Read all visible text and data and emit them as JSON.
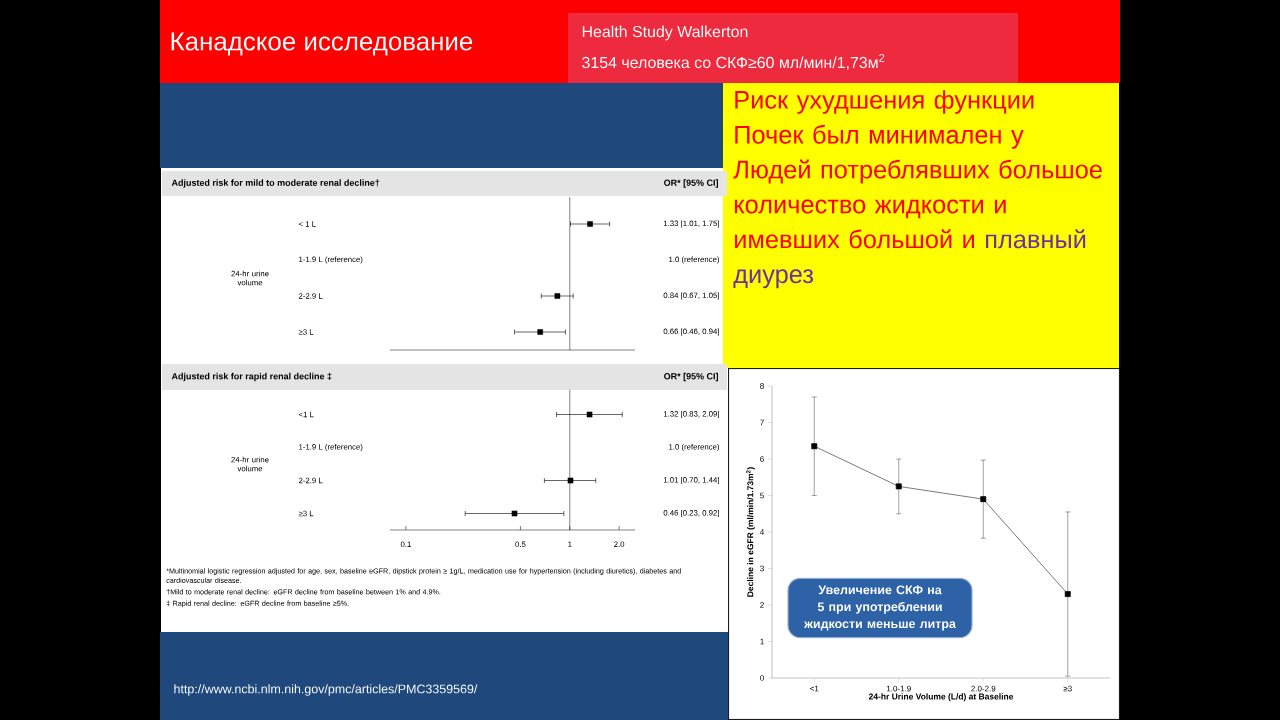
{
  "chart_data": [
    {
      "type": "other",
      "title": "Канадское исследование",
      "annotations": [
        "Health Study Walkerton",
        "3154 человека со СКФ≥60 мл/мин/1,73м$^{2}$",
        "http://www.ncbi.nlm.nih.gov/pmc/articles/PMC3359569/"
      ]
    },
    {
      "type": "scatter",
      "orientation": "horizontal",
      "title": "Adjusted risk for mild to moderate renal decline†",
      "ylabel": "24-hr urine volume",
      "categories": [
        "< 1 L",
        "1-1.9 L (reference)",
        "2-2.9 L",
        "≥3 L"
      ],
      "values": [
        1.33,
        null,
        0.84,
        0.66
      ],
      "errors": [
        [
          1.01,
          1.75
        ],
        null,
        [
          0.67,
          1.05
        ],
        [
          0.46,
          0.94
        ]
      ],
      "value_labels": [
        "1.33 [1.01, 1.75]",
        "1.0 (reference)",
        "0.84 [0.67, 1.05]",
        "0.66 [0.46, 0.94]"
      ],
      "color": "#000000",
      "marker": "square",
      "log": "x",
      "xlim": [
        0.08,
        2.5
      ],
      "tick_labels": "y",
      "ref_lines": [
        {
          "axis": "x",
          "value": 1
        }
      ],
      "annotations": [
        "OR* [95% CI]"
      ]
    },
    {
      "type": "scatter",
      "orientation": "horizontal",
      "title": "Adjusted risk for rapid renal decline ‡",
      "ylabel": "24-hr urine volume",
      "categories": [
        "<1 L",
        "1-1.9 L (reference)",
        "2-2.9 L",
        "≥3 L"
      ],
      "values": [
        1.32,
        null,
        1.01,
        0.46
      ],
      "errors": [
        [
          0.83,
          2.09
        ],
        null,
        [
          0.7,
          1.44
        ],
        [
          0.23,
          0.92
        ]
      ],
      "value_labels": [
        "1.32 [0.83, 2.09]",
        "1.0 (reference)",
        "1.01 [0.70, 1.44]",
        "0.46 [0.23, 0.92]"
      ],
      "color": "#000000",
      "marker": "square",
      "log": "x",
      "xlim": [
        0.08,
        2.5
      ],
      "xticks": [
        0.1,
        0.5,
        1,
        {
          "value": 2,
          "label": "2.0"
        }
      ],
      "ref_lines": [
        {
          "axis": "x",
          "value": 1
        }
      ],
      "annotations": [
        "OR* [95% CI]",
        "*Multinomial logistic regression adjusted for age, sex, baseline eGFR, dipstick protein ≥ 1g/L, medication use for hypertension (including diuretics), diabetes and cardiovascular disease.",
        "†Mild to moderate renal decline: eGFR decline from baseline between 1% and 4.9%.",
        "‡ Rapid renal decline: eGFR decline from baseline ≥5%."
      ]
    },
    {
      "type": "other",
      "annotations": [
        "Риск ухудшения функции Почек был минимален у Людей потреблявших большое количество жидкости и имевших большой и",
        "плавный диурез"
      ]
    },
    {
      "type": "line",
      "categories": [
        "<1",
        "1.0-1.9",
        "2.0-2.9",
        "≥3"
      ],
      "values": [
        6.35,
        5.25,
        4.9,
        2.3
      ],
      "errors": [
        [
          5.0,
          7.7
        ],
        [
          4.5,
          6.0
        ],
        [
          3.83,
          5.97
        ],
        [
          0.05,
          4.55
        ]
      ],
      "color": "#404040",
      "marker": "square",
      "ylim": [
        0,
        8
      ],
      "yticks": [
        0,
        1,
        2,
        3,
        4,
        5,
        6,
        7,
        8
      ],
      "ylabel": "Decline in eGFR (ml/min/1.73m$^{2}$)",
      "xlabel": "24-hr Urine Volume (L/d) at Baseline",
      "annotations": [
        "Увеличение СКФ на 5 при употреблении жидкости меньше литра"
      ]
    }
  ]
}
